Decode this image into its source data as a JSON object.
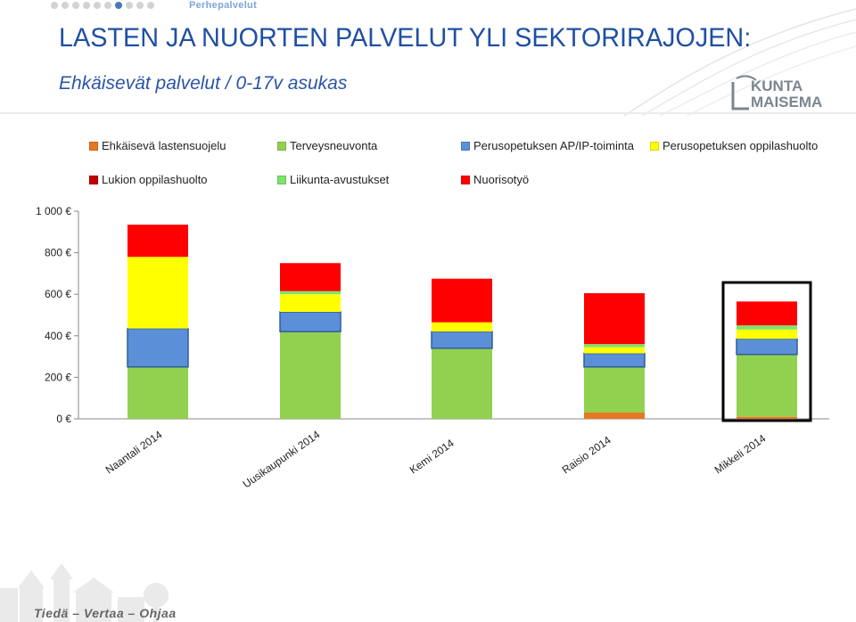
{
  "header": {
    "section_label": "Perhepalvelut",
    "title": "LASTEN JA NUORTEN PALVELUT YLI SEKTORIRAJOJEN:",
    "subtitle": "Ehkäisevät palvelut / 0-17v asukas",
    "logo_line1": "KUNTA",
    "logo_line2": "MAISEMA"
  },
  "footer": {
    "tagline": "Tiedä – Vertaa – Ohjaa"
  },
  "colors": {
    "title": "#1f4fa3",
    "nav_active": "#4a78b8"
  },
  "chart_data": {
    "type": "bar",
    "stacked": true,
    "categories": [
      "Naantali 2014",
      "Uusikaupunki 2014",
      "Kemi 2014",
      "Raisio 2014",
      "Mikkeli 2014"
    ],
    "highlighted_category": "Mikkeli 2014",
    "ylim": [
      0,
      1000
    ],
    "yticks": [
      0,
      200,
      400,
      600,
      800,
      1000
    ],
    "ytick_labels": [
      "0 €",
      "200 €",
      "400 €",
      "600 €",
      "800 €",
      "1 000 €"
    ],
    "legend_position": "top",
    "series": [
      {
        "name": "Ehkäisevä lastensuojelu",
        "color": "#e87722",
        "values": [
          0,
          0,
          0,
          30,
          10
        ]
      },
      {
        "name": "Terveysneuvonta",
        "color": "#92d050",
        "values": [
          250,
          420,
          340,
          220,
          300
        ]
      },
      {
        "name": "Perusopetuksen AP/IP-toiminta",
        "color": "#5b8fd8",
        "values": [
          185,
          95,
          80,
          65,
          75
        ]
      },
      {
        "name": "Perusopetuksen oppilashuolto",
        "color": "#ffff00",
        "values": [
          345,
          85,
          45,
          30,
          45
        ]
      },
      {
        "name": "Lukion oppilashuolto",
        "color": "#c00000",
        "values": [
          0,
          0,
          0,
          0,
          0
        ]
      },
      {
        "name": "Liikunta-avustukset",
        "color": "#7ee36b",
        "values": [
          0,
          15,
          0,
          15,
          20
        ]
      },
      {
        "name": "Nuorisotyö",
        "color": "#ff0000",
        "values": [
          155,
          135,
          210,
          245,
          115
        ]
      }
    ]
  }
}
